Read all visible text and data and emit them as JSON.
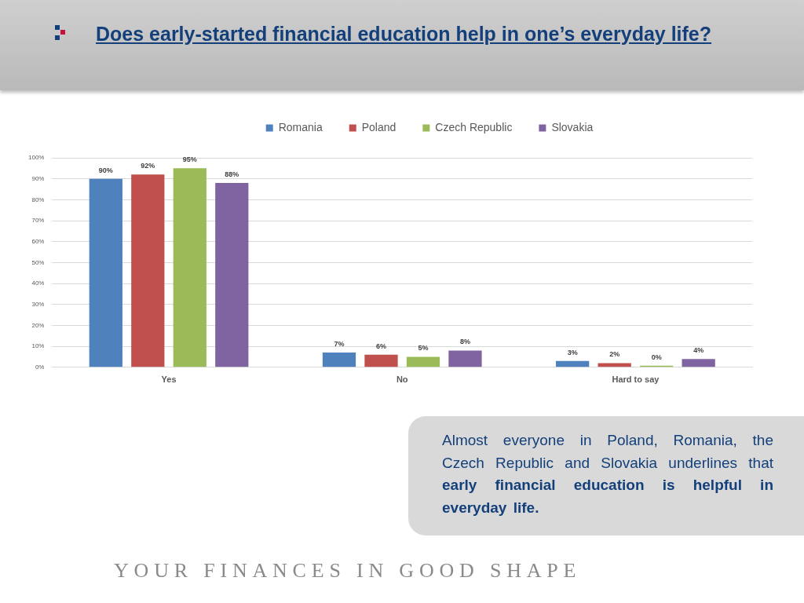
{
  "chart_data": {
    "type": "bar",
    "title": "Does early-started financial education help in one’s everyday life?",
    "categories": [
      "Yes",
      "No",
      "Hard to say"
    ],
    "series": [
      {
        "name": "Romania",
        "color": "#4f81bd",
        "values": [
          90,
          7,
          3
        ],
        "value_labels": [
          "90%",
          "7%",
          "3%"
        ]
      },
      {
        "name": "Poland",
        "color": "#c0504d",
        "values": [
          92,
          6,
          2
        ],
        "value_labels": [
          "92%",
          "6%",
          "2%"
        ]
      },
      {
        "name": "Czech Republic",
        "color": "#9bbb59",
        "values": [
          95,
          5,
          0
        ],
        "value_labels": [
          "95%",
          "5%",
          "0%"
        ]
      },
      {
        "name": "Slovakia",
        "color": "#8064a2",
        "values": [
          88,
          8,
          4
        ],
        "value_labels": [
          "88%",
          "8%",
          "4%"
        ]
      }
    ],
    "ylim": [
      0,
      100
    ],
    "yticks": [
      {
        "value": 0,
        "label": "0%"
      },
      {
        "value": 10,
        "label": "10%"
      },
      {
        "value": 20,
        "label": "20%"
      },
      {
        "value": 30,
        "label": "30%"
      },
      {
        "value": 40,
        "label": "40%"
      },
      {
        "value": 50,
        "label": "50%"
      },
      {
        "value": 60,
        "label": "60%"
      },
      {
        "value": 70,
        "label": "70%"
      },
      {
        "value": 80,
        "label": "80%"
      },
      {
        "value": 90,
        "label": "90%"
      },
      {
        "value": 100,
        "label": "100%"
      }
    ],
    "grid": "y",
    "legend": "top",
    "annotations": [
      "Almost everyone in Poland, Romania, the Czech Republic and Slovakia underlines that",
      "early financial education is helpful in everyday life.",
      "YOUR FINANCES IN GOOD SHAPE"
    ]
  }
}
